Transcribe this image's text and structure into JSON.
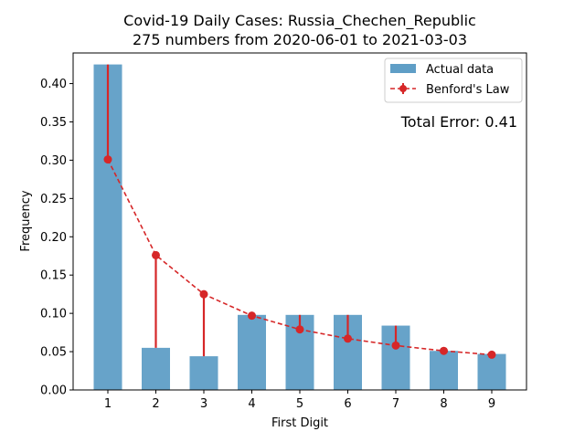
{
  "chart_data": {
    "type": "bar",
    "title": "Covid-19 Daily Cases: Russia_Chechen_Republic",
    "subtitle": "275 numbers from 2020-06-01 to 2021-03-03",
    "xlabel": "First Digit",
    "ylabel": "Frequency",
    "categories": [
      "1",
      "2",
      "3",
      "4",
      "5",
      "6",
      "7",
      "8",
      "9"
    ],
    "ylim": [
      0,
      0.44
    ],
    "yticks": [
      "0.00",
      "0.05",
      "0.10",
      "0.15",
      "0.20",
      "0.25",
      "0.30",
      "0.35",
      "0.40"
    ],
    "grid": false,
    "legend_position": "top-right",
    "series": [
      {
        "name": "Actual data",
        "type": "bar",
        "color": "#5f9ec6",
        "values": [
          0.425,
          0.055,
          0.044,
          0.098,
          0.098,
          0.098,
          0.084,
          0.051,
          0.047
        ]
      },
      {
        "name": "Benford's Law",
        "type": "line",
        "style": "dashed",
        "color": "#d62728",
        "values": [
          0.301,
          0.176,
          0.125,
          0.097,
          0.079,
          0.067,
          0.058,
          0.051,
          0.046
        ]
      }
    ],
    "annotation": {
      "text": "Total Error: 0.41",
      "color": "#d62728"
    }
  }
}
